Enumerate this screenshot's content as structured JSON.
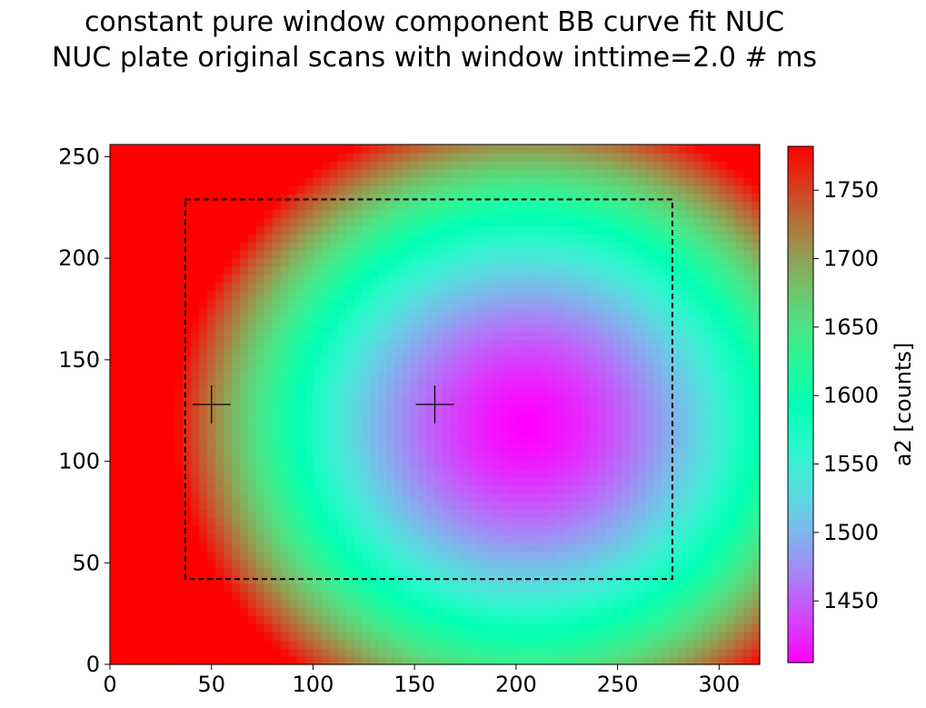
{
  "chart_data": {
    "type": "heatmap",
    "title": [
      "constant pure window component BB curve fit NUC",
      "NUC plate original scans with window inttime=2.0 # ms"
    ],
    "xlabel": "",
    "ylabel": "",
    "xlim": [
      0,
      320
    ],
    "ylim": [
      0,
      256
    ],
    "x_ticks": [
      0,
      50,
      100,
      150,
      200,
      250,
      300
    ],
    "y_ticks": [
      0,
      50,
      100,
      150,
      200,
      250
    ],
    "colormap": "rainbow",
    "colorbar": {
      "label": "a2 [counts]",
      "range": [
        1405,
        1782
      ],
      "ticks": [
        1450,
        1500,
        1550,
        1600,
        1650,
        1700,
        1750
      ]
    },
    "field_model": {
      "center": [
        205,
        118
      ],
      "min_value": 1405,
      "max_value": 1782,
      "edge_value": 1735
    },
    "roi_rectangle": {
      "x0": 37,
      "x1": 277,
      "y0": 42,
      "y1": 229,
      "style": "dashed",
      "color": "#000000"
    },
    "markers": [
      {
        "x": 50,
        "y": 128,
        "symbol": "+",
        "color": "#000000"
      },
      {
        "x": 160,
        "y": 128,
        "symbol": "+",
        "color": "#000000"
      }
    ]
  }
}
